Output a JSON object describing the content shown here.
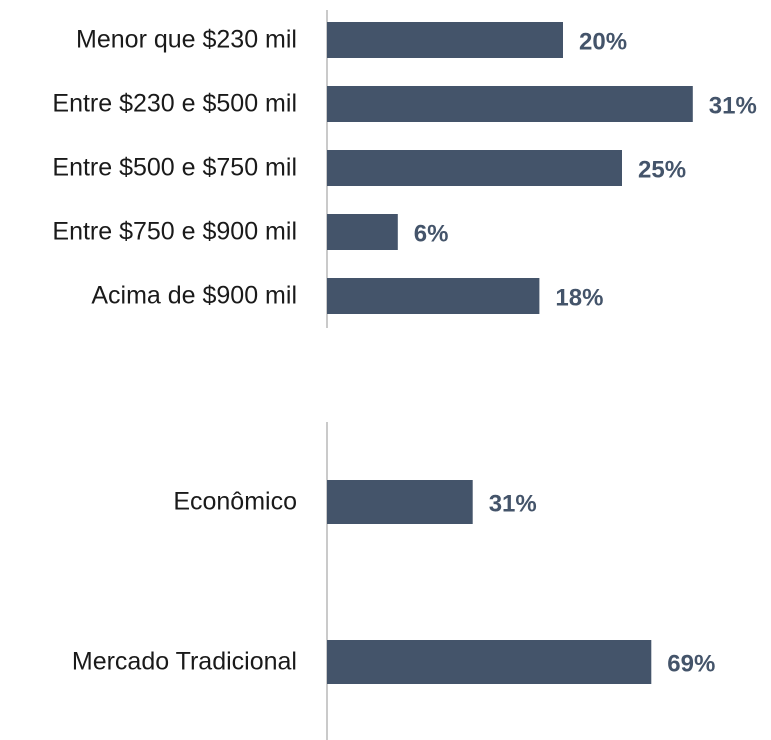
{
  "chart_data": [
    {
      "type": "bar",
      "orientation": "horizontal",
      "color": "#44546a",
      "categories": [
        "Menor que $230 mil",
        "Entre $230 e $500 mil",
        "Entre $500 e $750 mil",
        "Entre $750 e $900 mil",
        "Acima de $900 mil"
      ],
      "values": [
        20,
        31,
        25,
        6,
        18
      ],
      "value_labels": [
        "20%",
        "31%",
        "25%",
        "6%",
        "18%"
      ]
    },
    {
      "type": "bar",
      "orientation": "horizontal",
      "color": "#44546a",
      "categories": [
        "Econômico",
        "Mercado Tradicional"
      ],
      "values": [
        31,
        69
      ],
      "value_labels": [
        "31%",
        "69%"
      ]
    }
  ]
}
